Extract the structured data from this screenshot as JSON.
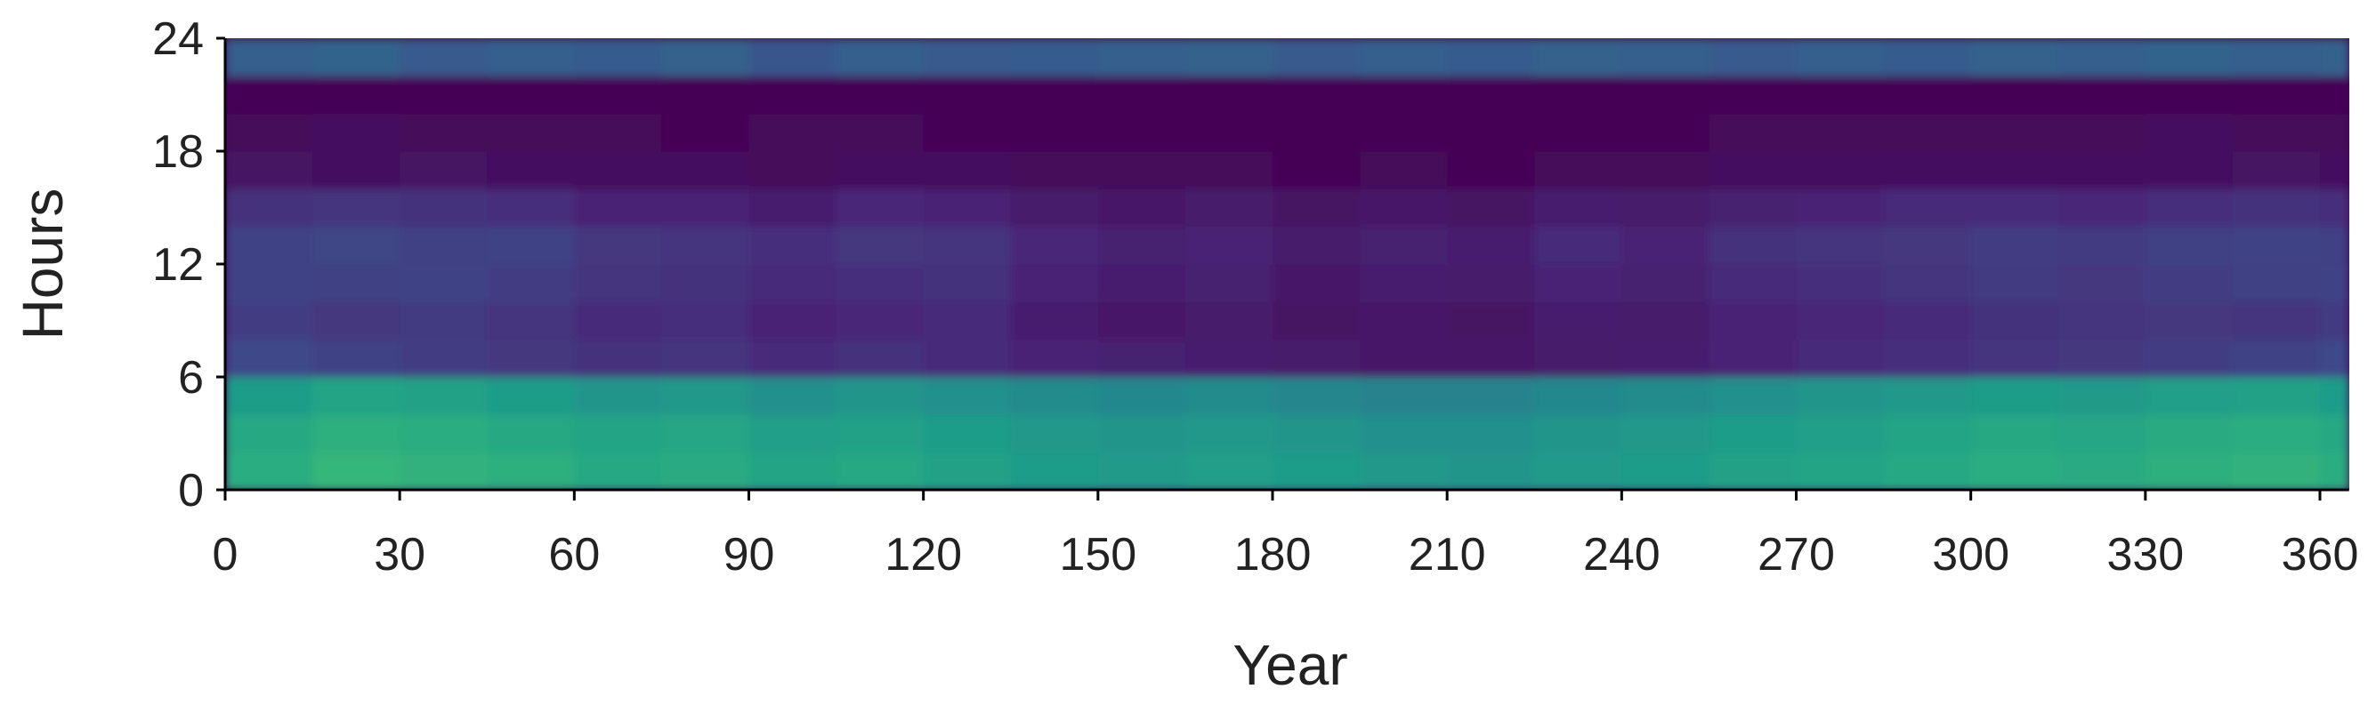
{
  "chart_data": {
    "type": "heatmap",
    "xlabel": "Year",
    "ylabel": "Hours",
    "colormap": "viridis",
    "vlim": [
      0,
      1
    ],
    "xlim": [
      0,
      365
    ],
    "xticks": [
      0,
      30,
      60,
      90,
      120,
      150,
      180,
      210,
      240,
      270,
      300,
      330,
      360
    ],
    "ylim": [
      0,
      24
    ],
    "yticks": [
      0,
      6,
      12,
      18,
      24
    ],
    "xbins": [
      0,
      15,
      30,
      45,
      60,
      75,
      90,
      105,
      120,
      135,
      150,
      165,
      180,
      195,
      210,
      225,
      240,
      255,
      270,
      285,
      300,
      315,
      330,
      345,
      360,
      365
    ],
    "ybins": [
      0,
      2,
      4,
      6,
      8,
      10,
      12,
      14,
      16,
      18,
      20,
      22,
      24
    ],
    "values": [
      [
        0.62,
        0.66,
        0.64,
        0.63,
        0.6,
        0.61,
        0.58,
        0.6,
        0.57,
        0.55,
        0.54,
        0.56,
        0.55,
        0.53,
        0.52,
        0.54,
        0.55,
        0.57,
        0.58,
        0.6,
        0.62,
        0.61,
        0.63,
        0.64,
        0.62
      ],
      [
        0.6,
        0.63,
        0.62,
        0.6,
        0.58,
        0.59,
        0.56,
        0.57,
        0.55,
        0.53,
        0.52,
        0.53,
        0.52,
        0.5,
        0.5,
        0.52,
        0.53,
        0.55,
        0.56,
        0.58,
        0.6,
        0.59,
        0.61,
        0.62,
        0.6
      ],
      [
        0.55,
        0.58,
        0.57,
        0.55,
        0.52,
        0.53,
        0.5,
        0.52,
        0.5,
        0.48,
        0.47,
        0.48,
        0.46,
        0.45,
        0.45,
        0.47,
        0.48,
        0.5,
        0.52,
        0.53,
        0.55,
        0.54,
        0.56,
        0.57,
        0.55
      ],
      [
        0.22,
        0.2,
        0.18,
        0.16,
        0.14,
        0.15,
        0.12,
        0.14,
        0.12,
        0.1,
        0.09,
        0.08,
        0.07,
        0.06,
        0.06,
        0.07,
        0.08,
        0.1,
        0.12,
        0.13,
        0.15,
        0.16,
        0.18,
        0.2,
        0.22
      ],
      [
        0.18,
        0.16,
        0.17,
        0.15,
        0.12,
        0.13,
        0.1,
        0.11,
        0.12,
        0.08,
        0.06,
        0.07,
        0.05,
        0.06,
        0.05,
        0.08,
        0.07,
        0.1,
        0.11,
        0.12,
        0.14,
        0.15,
        0.16,
        0.15,
        0.17
      ],
      [
        0.2,
        0.19,
        0.2,
        0.18,
        0.15,
        0.14,
        0.12,
        0.13,
        0.14,
        0.1,
        0.08,
        0.09,
        0.06,
        0.08,
        0.07,
        0.1,
        0.09,
        0.12,
        0.13,
        0.15,
        0.17,
        0.16,
        0.18,
        0.19,
        0.2
      ],
      [
        0.2,
        0.21,
        0.19,
        0.2,
        0.16,
        0.15,
        0.13,
        0.16,
        0.15,
        0.11,
        0.09,
        0.1,
        0.07,
        0.09,
        0.08,
        0.12,
        0.1,
        0.14,
        0.15,
        0.16,
        0.18,
        0.17,
        0.19,
        0.2,
        0.19
      ],
      [
        0.14,
        0.15,
        0.14,
        0.13,
        0.1,
        0.1,
        0.08,
        0.11,
        0.1,
        0.07,
        0.06,
        0.07,
        0.05,
        0.06,
        0.05,
        0.08,
        0.07,
        0.09,
        0.1,
        0.12,
        0.12,
        0.11,
        0.13,
        0.14,
        0.13
      ],
      [
        0.05,
        0.04,
        0.05,
        0.04,
        0.03,
        0.03,
        0.02,
        0.03,
        0.03,
        0.02,
        0.02,
        0.02,
        0.01,
        0.02,
        0.01,
        0.02,
        0.02,
        0.03,
        0.03,
        0.04,
        0.04,
        0.03,
        0.04,
        0.05,
        0.04
      ],
      [
        0.02,
        0.03,
        0.02,
        0.02,
        0.02,
        0.01,
        0.02,
        0.02,
        0.01,
        0.01,
        0.01,
        0.01,
        0.01,
        0.01,
        0.01,
        0.01,
        0.01,
        0.02,
        0.02,
        0.02,
        0.02,
        0.02,
        0.03,
        0.02,
        0.02
      ],
      [
        0.01,
        0.01,
        0.01,
        0.01,
        0.01,
        0.01,
        0.01,
        0.01,
        0.01,
        0.01,
        0.01,
        0.01,
        0.01,
        0.01,
        0.01,
        0.01,
        0.01,
        0.01,
        0.01,
        0.01,
        0.01,
        0.01,
        0.01,
        0.01,
        0.01
      ],
      [
        0.3,
        0.32,
        0.28,
        0.3,
        0.29,
        0.31,
        0.27,
        0.3,
        0.28,
        0.29,
        0.3,
        0.31,
        0.28,
        0.3,
        0.29,
        0.31,
        0.3,
        0.28,
        0.3,
        0.29,
        0.31,
        0.3,
        0.32,
        0.3,
        0.31
      ]
    ]
  }
}
